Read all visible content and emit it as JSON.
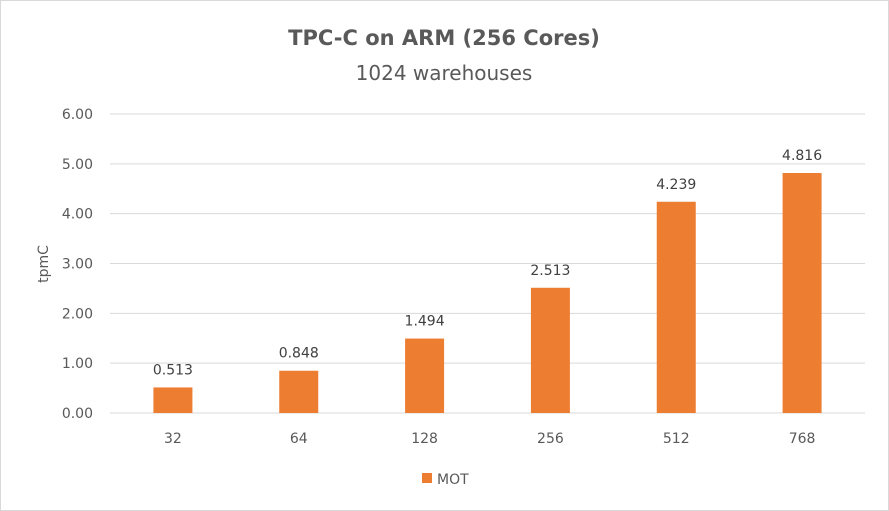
{
  "chart_data": {
    "type": "bar",
    "title": "TPC-C on ARM (256 Cores)",
    "subtitle": "1024 warehouses",
    "xlabel": "",
    "ylabel": "tpmC",
    "categories": [
      "32",
      "64",
      "128",
      "256",
      "512",
      "768"
    ],
    "series": [
      {
        "name": "MOT",
        "values": [
          0.513,
          0.848,
          1.494,
          2.513,
          4.239,
          4.816
        ],
        "labels": [
          "0.513",
          "0.848",
          "1.494",
          "2.513",
          "4.239",
          "4.816"
        ],
        "color": "#ed7d31"
      }
    ],
    "yticks": [
      "0.00",
      "1.00",
      "2.00",
      "3.00",
      "4.00",
      "5.00",
      "6.00"
    ],
    "ylim": [
      0,
      6
    ],
    "grid": true,
    "legend": "bottom"
  }
}
